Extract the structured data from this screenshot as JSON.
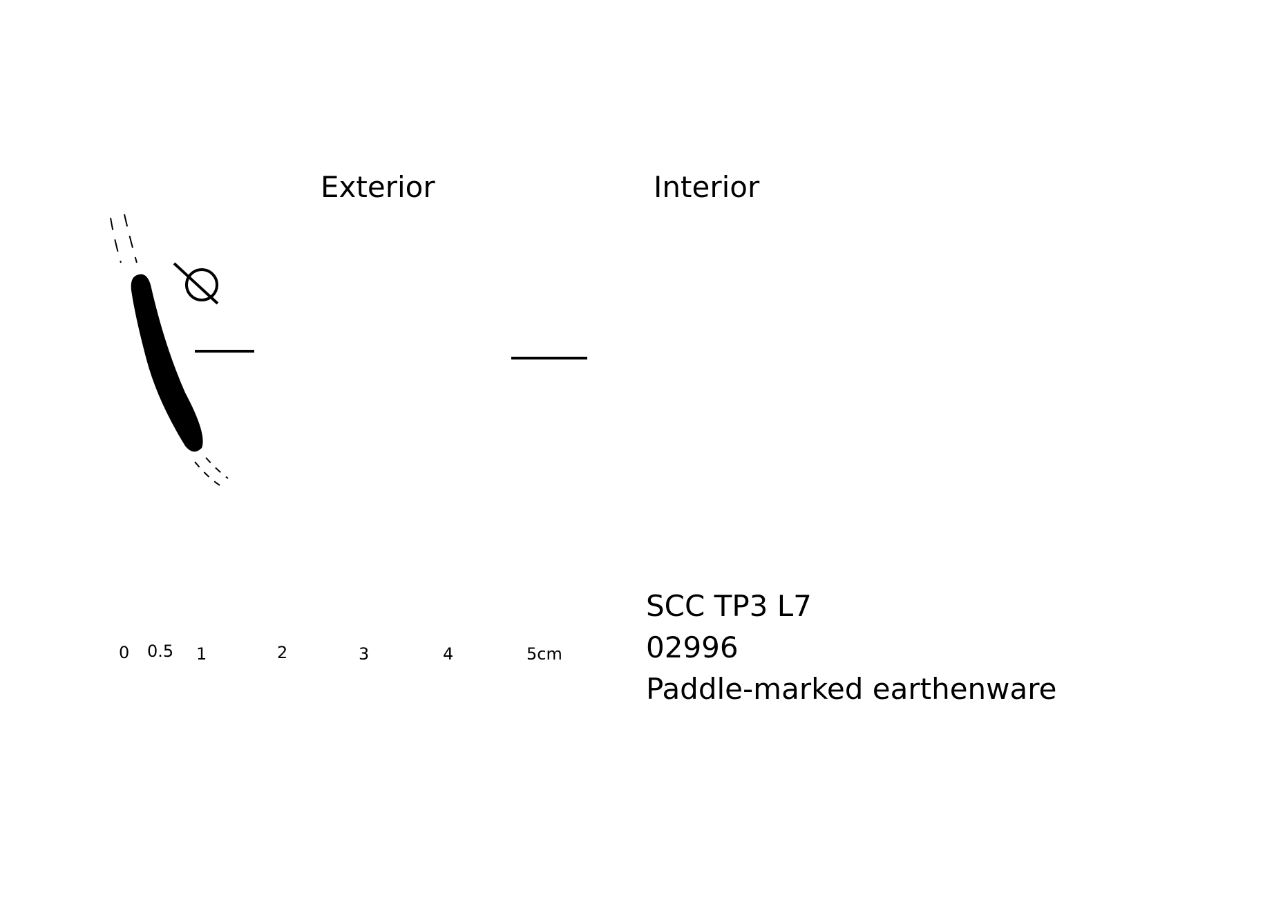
{
  "labels": {
    "exterior": "Exterior",
    "interior": "Interior"
  },
  "section": {
    "diameter_symbol": "Ø"
  },
  "scale_bar": {
    "ticks": [
      "0",
      "0.5",
      "1",
      "2",
      "3",
      "4",
      "5cm"
    ]
  },
  "specimen": {
    "site_context": "SCC TP3 L7",
    "catalog_number": "02996",
    "description": "Paddle-marked earthenware"
  },
  "colors": {
    "ink": "#000000",
    "paper": "#ffffff"
  }
}
